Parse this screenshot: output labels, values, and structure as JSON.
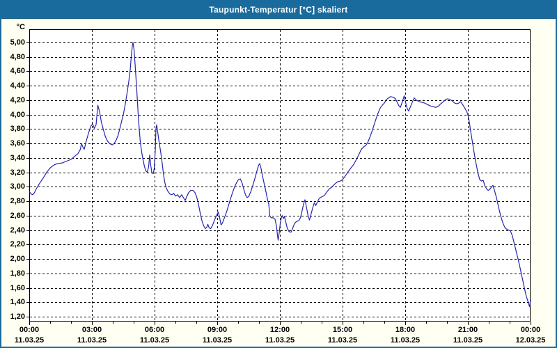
{
  "window": {
    "title": "Taupunkt-Temperatur [°C] skaliert"
  },
  "colors": {
    "titlebar": "#1a6b9d",
    "window_bg": "#fffff2",
    "plot_bg": "#ffffff",
    "line": "#2424ad",
    "grid": "#000000",
    "text": "#000000"
  },
  "chart_data": {
    "type": "line",
    "title": "Taupunkt-Temperatur [°C] skaliert",
    "y_unit_label": "°C",
    "ylim": [
      1.2,
      5.0
    ],
    "grid": "dashed",
    "legend": "none",
    "y_ticks": [
      {
        "value": 5.0,
        "label": "5,00"
      },
      {
        "value": 4.8,
        "label": "4,80"
      },
      {
        "value": 4.6,
        "label": "4,60"
      },
      {
        "value": 4.4,
        "label": "4,40"
      },
      {
        "value": 4.2,
        "label": "4,20"
      },
      {
        "value": 4.0,
        "label": "4,00"
      },
      {
        "value": 3.8,
        "label": "3,80"
      },
      {
        "value": 3.6,
        "label": "3,60"
      },
      {
        "value": 3.4,
        "label": "3,40"
      },
      {
        "value": 3.2,
        "label": "3,20"
      },
      {
        "value": 3.0,
        "label": "3,00"
      },
      {
        "value": 2.8,
        "label": "2,80"
      },
      {
        "value": 2.6,
        "label": "2,60"
      },
      {
        "value": 2.4,
        "label": "2,40"
      },
      {
        "value": 2.2,
        "label": "2,20"
      },
      {
        "value": 2.0,
        "label": "2,00"
      },
      {
        "value": 1.8,
        "label": "1,80"
      },
      {
        "value": 1.6,
        "label": "1,60"
      },
      {
        "value": 1.4,
        "label": "1,40"
      },
      {
        "value": 1.2,
        "label": "1,20"
      }
    ],
    "x_ticks": [
      {
        "minutes": 0,
        "time": "00:00",
        "date": "11.03.25"
      },
      {
        "minutes": 180,
        "time": "03:00",
        "date": "11.03.25"
      },
      {
        "minutes": 360,
        "time": "06:00",
        "date": "11.03.25"
      },
      {
        "minutes": 540,
        "time": "09:00",
        "date": "11.03.25"
      },
      {
        "minutes": 720,
        "time": "12:00",
        "date": "11.03.25"
      },
      {
        "minutes": 900,
        "time": "15:00",
        "date": "11.03.25"
      },
      {
        "minutes": 1080,
        "time": "18:00",
        "date": "11.03.25"
      },
      {
        "minutes": 1260,
        "time": "21:00",
        "date": "11.03.25"
      },
      {
        "minutes": 1440,
        "time": "00:00",
        "date": "12.03.25"
      }
    ],
    "x_minor_tick_minutes": 60,
    "x_range_minutes": [
      0,
      1440
    ],
    "series": [
      {
        "name": "Taupunkt-Temperatur",
        "color": "#2424ad",
        "points": [
          [
            0,
            2.94
          ],
          [
            5,
            2.9
          ],
          [
            10,
            2.89
          ],
          [
            15,
            2.92
          ],
          [
            20,
            2.97
          ],
          [
            30,
            3.05
          ],
          [
            40,
            3.12
          ],
          [
            50,
            3.2
          ],
          [
            60,
            3.26
          ],
          [
            70,
            3.3
          ],
          [
            80,
            3.32
          ],
          [
            95,
            3.33
          ],
          [
            110,
            3.36
          ],
          [
            120,
            3.38
          ],
          [
            130,
            3.42
          ],
          [
            140,
            3.46
          ],
          [
            147,
            3.52
          ],
          [
            150,
            3.6
          ],
          [
            154,
            3.55
          ],
          [
            158,
            3.52
          ],
          [
            163,
            3.62
          ],
          [
            170,
            3.74
          ],
          [
            177,
            3.84
          ],
          [
            182,
            3.87
          ],
          [
            187,
            3.81
          ],
          [
            192,
            3.86
          ],
          [
            197,
            4.13
          ],
          [
            202,
            4.04
          ],
          [
            207,
            3.9
          ],
          [
            213,
            3.79
          ],
          [
            219,
            3.69
          ],
          [
            225,
            3.63
          ],
          [
            231,
            3.6
          ],
          [
            238,
            3.58
          ],
          [
            244,
            3.6
          ],
          [
            250,
            3.65
          ],
          [
            255,
            3.71
          ],
          [
            260,
            3.8
          ],
          [
            266,
            3.92
          ],
          [
            271,
            4.02
          ],
          [
            276,
            4.15
          ],
          [
            281,
            4.3
          ],
          [
            286,
            4.46
          ],
          [
            290,
            4.62
          ],
          [
            293,
            4.8
          ],
          [
            296,
            4.95
          ],
          [
            298,
            5.0
          ],
          [
            301,
            4.9
          ],
          [
            304,
            4.7
          ],
          [
            307,
            4.48
          ],
          [
            310,
            4.25
          ],
          [
            313,
            4.0
          ],
          [
            316,
            3.8
          ],
          [
            319,
            3.62
          ],
          [
            323,
            3.48
          ],
          [
            327,
            3.37
          ],
          [
            331,
            3.28
          ],
          [
            335,
            3.22
          ],
          [
            339,
            3.2
          ],
          [
            343,
            3.28
          ],
          [
            346,
            3.44
          ],
          [
            349,
            3.3
          ],
          [
            352,
            3.2
          ],
          [
            356,
            3.18
          ],
          [
            359,
            3.25
          ],
          [
            362,
            3.5
          ],
          [
            364,
            3.8
          ],
          [
            366,
            3.86
          ],
          [
            369,
            3.76
          ],
          [
            373,
            3.62
          ],
          [
            377,
            3.5
          ],
          [
            381,
            3.36
          ],
          [
            385,
            3.2
          ],
          [
            389,
            3.07
          ],
          [
            393,
            2.99
          ],
          [
            398,
            2.94
          ],
          [
            404,
            2.9
          ],
          [
            410,
            2.89
          ],
          [
            415,
            2.91
          ],
          [
            420,
            2.87
          ],
          [
            426,
            2.89
          ],
          [
            432,
            2.85
          ],
          [
            438,
            2.89
          ],
          [
            444,
            2.84
          ],
          [
            448,
            2.81
          ],
          [
            453,
            2.87
          ],
          [
            458,
            2.92
          ],
          [
            464,
            2.95
          ],
          [
            470,
            2.95
          ],
          [
            476,
            2.92
          ],
          [
            481,
            2.86
          ],
          [
            486,
            2.76
          ],
          [
            491,
            2.64
          ],
          [
            496,
            2.53
          ],
          [
            501,
            2.46
          ],
          [
            506,
            2.42
          ],
          [
            510,
            2.44
          ],
          [
            513,
            2.48
          ],
          [
            517,
            2.43
          ],
          [
            521,
            2.42
          ],
          [
            526,
            2.46
          ],
          [
            530,
            2.51
          ],
          [
            534,
            2.56
          ],
          [
            539,
            2.61
          ],
          [
            543,
            2.65
          ],
          [
            547,
            2.57
          ],
          [
            551,
            2.47
          ],
          [
            555,
            2.5
          ],
          [
            559,
            2.55
          ],
          [
            563,
            2.6
          ],
          [
            568,
            2.67
          ],
          [
            573,
            2.75
          ],
          [
            578,
            2.83
          ],
          [
            584,
            2.92
          ],
          [
            590,
            3.0
          ],
          [
            596,
            3.06
          ],
          [
            601,
            3.1
          ],
          [
            606,
            3.11
          ],
          [
            611,
            3.06
          ],
          [
            616,
            2.97
          ],
          [
            621,
            2.89
          ],
          [
            626,
            2.85
          ],
          [
            631,
            2.87
          ],
          [
            637,
            2.94
          ],
          [
            643,
            3.03
          ],
          [
            649,
            3.13
          ],
          [
            654,
            3.22
          ],
          [
            659,
            3.3
          ],
          [
            662,
            3.32
          ],
          [
            666,
            3.25
          ],
          [
            670,
            3.15
          ],
          [
            675,
            3.04
          ],
          [
            680,
            2.93
          ],
          [
            685,
            2.81
          ],
          [
            688,
            2.76
          ],
          [
            691,
            2.6
          ],
          [
            695,
            2.57
          ],
          [
            701,
            2.57
          ],
          [
            706,
            2.55
          ],
          [
            710,
            2.46
          ],
          [
            713,
            2.33
          ],
          [
            715,
            2.26
          ],
          [
            718,
            2.36
          ],
          [
            721,
            2.49
          ],
          [
            724,
            2.57
          ],
          [
            727,
            2.6
          ],
          [
            730,
            2.56
          ],
          [
            733,
            2.59
          ],
          [
            737,
            2.51
          ],
          [
            741,
            2.43
          ],
          [
            746,
            2.38
          ],
          [
            752,
            2.37
          ],
          [
            757,
            2.43
          ],
          [
            762,
            2.49
          ],
          [
            768,
            2.52
          ],
          [
            774,
            2.53
          ],
          [
            779,
            2.57
          ],
          [
            783,
            2.65
          ],
          [
            788,
            2.76
          ],
          [
            792,
            2.82
          ],
          [
            797,
            2.7
          ],
          [
            801,
            2.6
          ],
          [
            805,
            2.54
          ],
          [
            810,
            2.63
          ],
          [
            815,
            2.72
          ],
          [
            819,
            2.78
          ],
          [
            823,
            2.74
          ],
          [
            828,
            2.79
          ],
          [
            833,
            2.84
          ],
          [
            840,
            2.86
          ],
          [
            848,
            2.88
          ],
          [
            855,
            2.93
          ],
          [
            862,
            2.97
          ],
          [
            870,
            3.0
          ],
          [
            878,
            3.04
          ],
          [
            886,
            3.07
          ],
          [
            894,
            3.08
          ],
          [
            900,
            3.1
          ],
          [
            908,
            3.15
          ],
          [
            916,
            3.21
          ],
          [
            924,
            3.26
          ],
          [
            932,
            3.31
          ],
          [
            940,
            3.38
          ],
          [
            948,
            3.46
          ],
          [
            954,
            3.52
          ],
          [
            960,
            3.55
          ],
          [
            966,
            3.57
          ],
          [
            972,
            3.61
          ],
          [
            978,
            3.68
          ],
          [
            984,
            3.76
          ],
          [
            990,
            3.85
          ],
          [
            996,
            3.94
          ],
          [
            1002,
            4.02
          ],
          [
            1008,
            4.09
          ],
          [
            1014,
            4.13
          ],
          [
            1020,
            4.16
          ],
          [
            1026,
            4.21
          ],
          [
            1032,
            4.23
          ],
          [
            1038,
            4.25
          ],
          [
            1046,
            4.24
          ],
          [
            1052,
            4.22
          ],
          [
            1058,
            4.16
          ],
          [
            1062,
            4.12
          ],
          [
            1066,
            4.1
          ],
          [
            1072,
            4.18
          ],
          [
            1077,
            4.26
          ],
          [
            1082,
            4.15
          ],
          [
            1086,
            4.08
          ],
          [
            1090,
            4.05
          ],
          [
            1096,
            4.12
          ],
          [
            1101,
            4.18
          ],
          [
            1106,
            4.23
          ],
          [
            1112,
            4.2
          ],
          [
            1120,
            4.18
          ],
          [
            1128,
            4.17
          ],
          [
            1136,
            4.16
          ],
          [
            1144,
            4.14
          ],
          [
            1152,
            4.12
          ],
          [
            1160,
            4.11
          ],
          [
            1168,
            4.1
          ],
          [
            1176,
            4.12
          ],
          [
            1182,
            4.15
          ],
          [
            1190,
            4.18
          ],
          [
            1196,
            4.21
          ],
          [
            1202,
            4.22
          ],
          [
            1208,
            4.21
          ],
          [
            1215,
            4.19
          ],
          [
            1222,
            4.16
          ],
          [
            1228,
            4.15
          ],
          [
            1234,
            4.16
          ],
          [
            1239,
            4.18
          ],
          [
            1245,
            4.14
          ],
          [
            1251,
            4.09
          ],
          [
            1257,
            4.04
          ],
          [
            1261,
            3.98
          ],
          [
            1264,
            3.9
          ],
          [
            1267,
            3.8
          ],
          [
            1271,
            3.68
          ],
          [
            1275,
            3.56
          ],
          [
            1279,
            3.44
          ],
          [
            1284,
            3.31
          ],
          [
            1289,
            3.19
          ],
          [
            1294,
            3.1
          ],
          [
            1299,
            3.08
          ],
          [
            1304,
            3.09
          ],
          [
            1309,
            3.01
          ],
          [
            1314,
            2.97
          ],
          [
            1318,
            2.95
          ],
          [
            1322,
            2.96
          ],
          [
            1327,
            2.99
          ],
          [
            1332,
            3.02
          ],
          [
            1337,
            2.94
          ],
          [
            1342,
            2.85
          ],
          [
            1347,
            2.74
          ],
          [
            1352,
            2.64
          ],
          [
            1357,
            2.55
          ],
          [
            1362,
            2.48
          ],
          [
            1367,
            2.43
          ],
          [
            1372,
            2.41
          ],
          [
            1377,
            2.4
          ],
          [
            1382,
            2.39
          ],
          [
            1387,
            2.33
          ],
          [
            1392,
            2.24
          ],
          [
            1396,
            2.16
          ],
          [
            1400,
            2.08
          ],
          [
            1404,
            2.0
          ],
          [
            1408,
            1.92
          ],
          [
            1412,
            1.83
          ],
          [
            1416,
            1.74
          ],
          [
            1420,
            1.65
          ],
          [
            1424,
            1.56
          ],
          [
            1428,
            1.48
          ],
          [
            1432,
            1.42
          ],
          [
            1435,
            1.37
          ],
          [
            1437,
            1.34
          ],
          [
            1440,
            1.43
          ]
        ]
      }
    ]
  }
}
